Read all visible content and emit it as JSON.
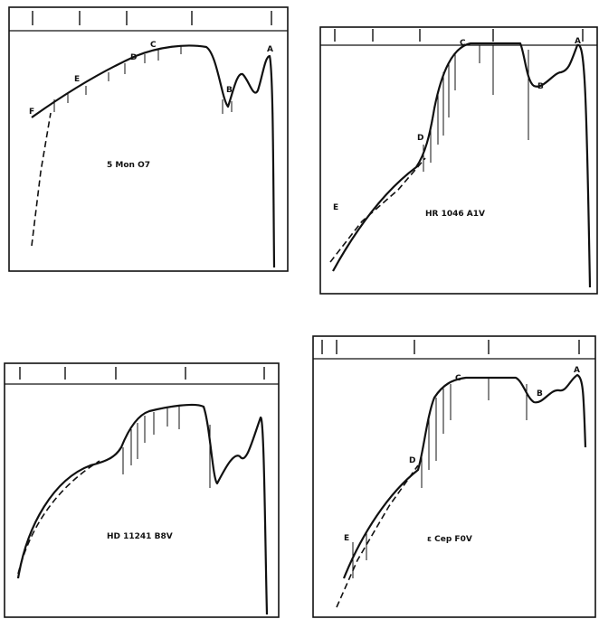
{
  "panels": [
    {
      "label": "5 Mon O7",
      "letters": [
        "A",
        "B",
        "C",
        "D",
        "E",
        "F"
      ]
    },
    {
      "label": "HR 1046 A1V",
      "letters": [
        "A",
        "B",
        "C",
        "D",
        "E"
      ]
    },
    {
      "label": "HD 11241 B8V"
    },
    {
      "label": "ε Cep F0V",
      "letters": [
        "A",
        "B",
        "C",
        "D",
        "E"
      ]
    }
  ]
}
